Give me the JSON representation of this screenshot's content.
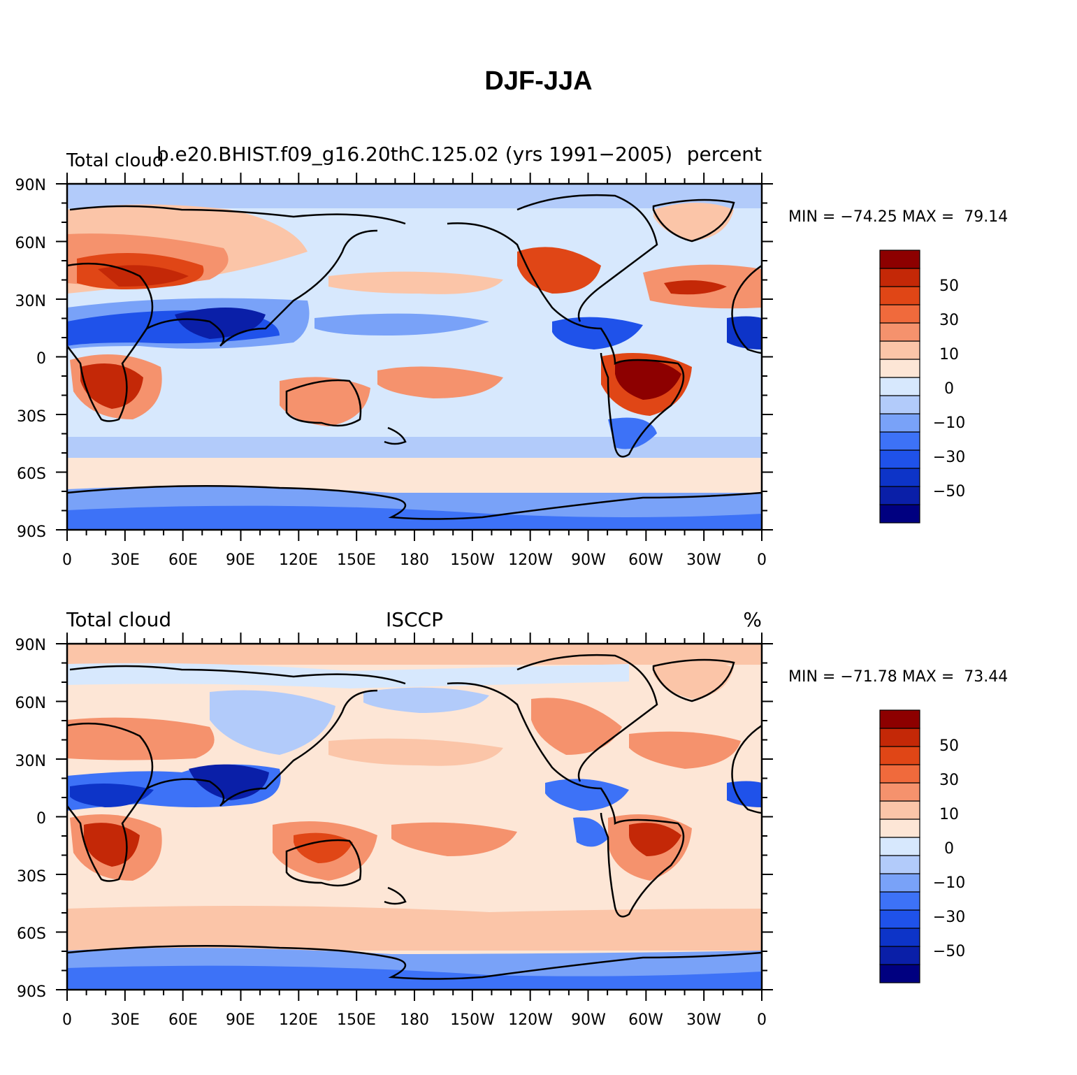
{
  "title": "DJF-JJA",
  "colors": {
    "levels": [
      "#000080",
      "#0a1fa8",
      "#0d34c8",
      "#1f52ea",
      "#3d72f7",
      "#79a2f8",
      "#b2cbfa",
      "#d7e8fd",
      "#fde6d6",
      "#fbc5a8",
      "#f5926d",
      "#f06a3c",
      "#e04616",
      "#c42807",
      "#8d0000"
    ],
    "land": "#000000",
    "frame": "#000000"
  },
  "panels": [
    {
      "left_label": "Total cloud",
      "center_label": "b.e20.BHIST.f09_g16.20thC.125.02 (yrs 1991−2005)",
      "right_label": "percent",
      "min_max_text": "MIN = −74.25 MAX =  79.14",
      "lat_labels": [
        "90N",
        "60N",
        "30N",
        "0",
        "30S",
        "60S",
        "90S"
      ],
      "lon_labels": [
        "0",
        "30E",
        "60E",
        "90E",
        "120E",
        "150E",
        "180",
        "150W",
        "120W",
        "90W",
        "60W",
        "30W",
        "0"
      ],
      "colorbar_labels": [
        "50",
        "30",
        "10",
        "0",
        "−10",
        "−30",
        "−50"
      ]
    },
    {
      "left_label": "Total cloud",
      "center_label": "ISCCP",
      "right_label": "%",
      "min_max_text": "MIN = −71.78 MAX =  73.44",
      "lat_labels": [
        "90N",
        "60N",
        "30N",
        "0",
        "30S",
        "60S",
        "90S"
      ],
      "lon_labels": [
        "0",
        "30E",
        "60E",
        "90E",
        "120E",
        "150E",
        "180",
        "150W",
        "120W",
        "90W",
        "60W",
        "30W",
        "0"
      ],
      "colorbar_labels": [
        "50",
        "30",
        "10",
        "0",
        "−10",
        "−30",
        "−50"
      ]
    }
  ]
}
